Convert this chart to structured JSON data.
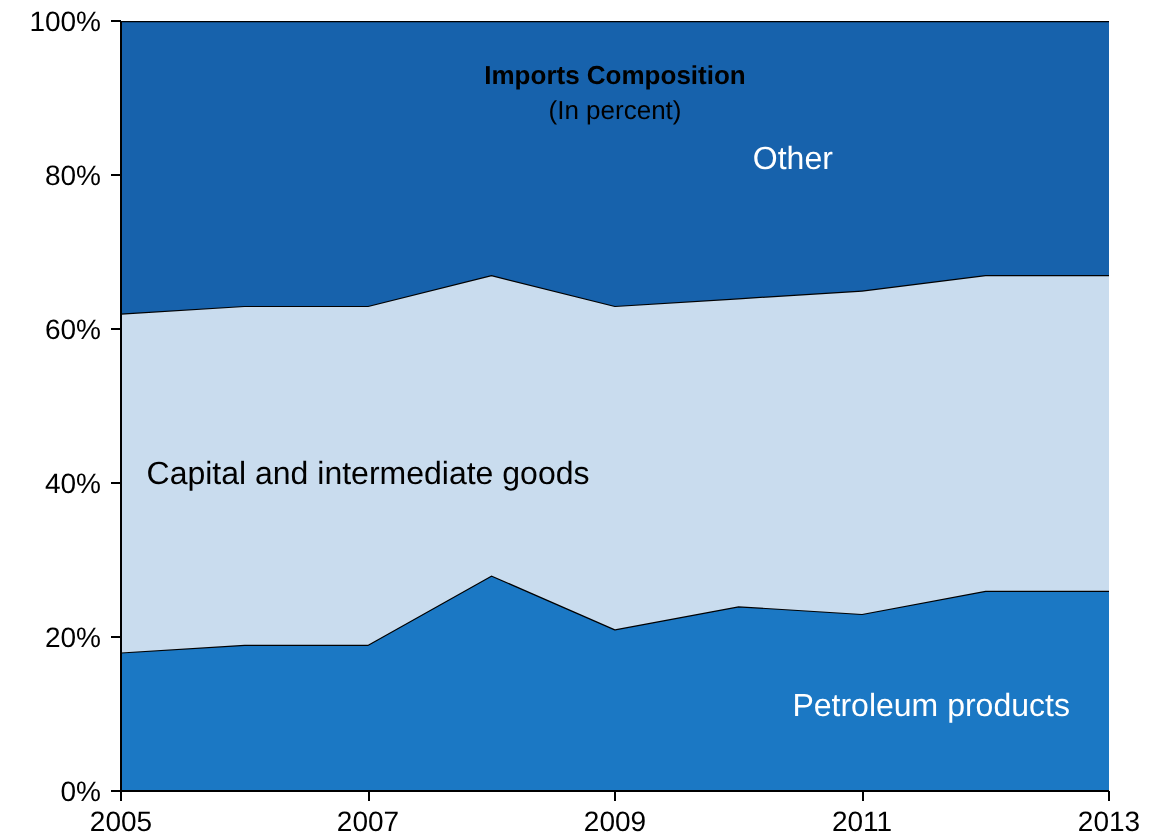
{
  "chart_data": {
    "type": "area",
    "stacked": true,
    "title": "Imports Composition",
    "subtitle": "(In percent)",
    "x": [
      2005,
      2006,
      2007,
      2008,
      2009,
      2010,
      2011,
      2012,
      2013
    ],
    "series": [
      {
        "name": "Petroleum products",
        "color": "#1b78c4",
        "values": [
          18,
          19,
          19,
          28,
          21,
          24,
          23,
          26,
          26
        ]
      },
      {
        "name": "Capital and intermediate goods",
        "color": "#c9dcee",
        "values": [
          44,
          44,
          44,
          39,
          42,
          40,
          42,
          41,
          41
        ]
      },
      {
        "name": "Other",
        "color": "#1762ac",
        "values": [
          38,
          37,
          37,
          33,
          37,
          36,
          35,
          33,
          33
        ]
      }
    ],
    "xlim": [
      2005,
      2013
    ],
    "xticks": [
      2005,
      2007,
      2009,
      2011,
      2013
    ],
    "ylim": [
      0,
      100
    ],
    "yticks": [
      {
        "value": 0,
        "label": "0%"
      },
      {
        "value": 20,
        "label": "20%"
      },
      {
        "value": 40,
        "label": "40%"
      },
      {
        "value": 60,
        "label": "60%"
      },
      {
        "value": 80,
        "label": "80%"
      },
      {
        "value": 100,
        "label": "100%"
      }
    ],
    "tick_labels": [
      "x",
      "y"
    ]
  }
}
